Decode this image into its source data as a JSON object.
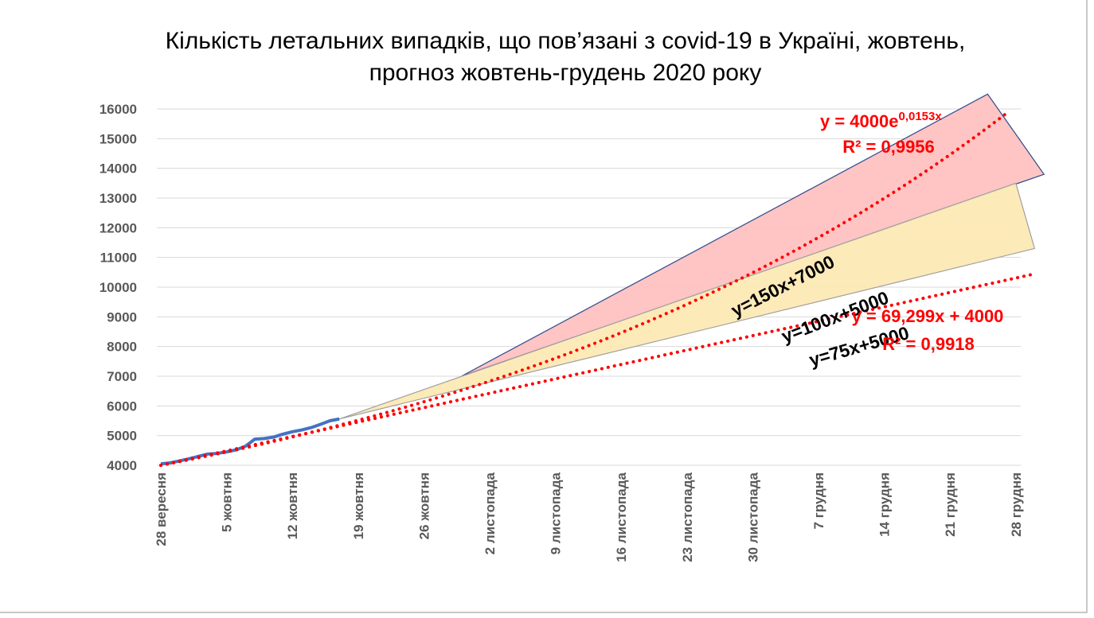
{
  "chart_data": {
    "type": "line",
    "title_line1": "Кількість летальних випадків, що пов’язані з covid-19 в Україні, жовтень,",
    "title_line2": "прогноз жовтень-грудень 2020 року",
    "x_tick_labels": [
      "28 вересня",
      "5 жовтня",
      "12 жовтня",
      "19 жовтня",
      "26 жовтня",
      "2 листопада",
      "9 листопада",
      "16 листопада",
      "23 листопада",
      "30 листопада",
      "7 грудня",
      "14 грудня",
      "21 грудня",
      "28 грудня"
    ],
    "xlim": [
      0,
      93
    ],
    "ylim": [
      4000,
      16000
    ],
    "y_ticks": [
      4000,
      5000,
      6000,
      7000,
      8000,
      9000,
      10000,
      11000,
      12000,
      13000,
      14000,
      15000,
      16000
    ],
    "grid": true,
    "series": [
      {
        "kind": "actual",
        "color": "#4472c4",
        "x": [
          0,
          1,
          2,
          3,
          4,
          5,
          6,
          7,
          8,
          9,
          10,
          11,
          12,
          13,
          14,
          15,
          16,
          17,
          18,
          19
        ],
        "y": [
          4050,
          4080,
          4150,
          4220,
          4300,
          4380,
          4400,
          4450,
          4520,
          4640,
          4880,
          4900,
          4950,
          5050,
          5130,
          5190,
          5270,
          5380,
          5500,
          5560
        ]
      },
      {
        "kind": "linear-trend",
        "color": "#ff0000",
        "equation": "y = 69,299x + 4000",
        "r2": "R² = 0,9918",
        "slope": 69.299,
        "intercept": 4000,
        "x_range": [
          0,
          93
        ]
      },
      {
        "kind": "exponential-trend",
        "color": "#ff0000",
        "equation_base": "y = 4000e",
        "equation_exponent": "0,0153x",
        "r2": "R² = 0,9956",
        "a": 4000,
        "b": 0.0153,
        "x_range": [
          0,
          90
        ]
      }
    ],
    "bands": [
      {
        "name": "y=150x+7000 band",
        "fill": "#ffc1c1",
        "stroke": "#2e4a8a",
        "upper": [
          [
            32,
            7000
          ],
          [
            88,
            16500
          ],
          [
            94,
            13800
          ]
        ],
        "lower": [
          [
            32,
            7000
          ],
          [
            94,
            13800
          ]
        ]
      },
      {
        "name": "y=100x+5000 band",
        "fill": "#fde9b5",
        "stroke": "#a0a0a0",
        "upper": [
          [
            19,
            5560
          ],
          [
            91,
            13500
          ],
          [
            93,
            11300
          ]
        ],
        "lower": [
          [
            19,
            5560
          ],
          [
            93,
            11300
          ]
        ]
      }
    ],
    "band_labels": [
      {
        "text": "y=150x+7000",
        "x": 66.5,
        "y": 9850,
        "angle": -27
      },
      {
        "text": "y=100x+5000",
        "x": 72,
        "y": 8800,
        "angle": -21
      },
      {
        "text": "y=75x+5000",
        "x": 74.5,
        "y": 7800,
        "angle": -16
      }
    ]
  }
}
